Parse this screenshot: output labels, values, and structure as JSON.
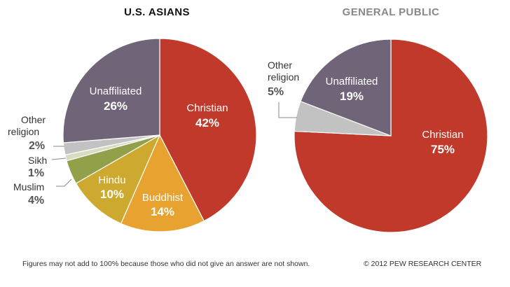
{
  "colors": {
    "christian": "#c0392b",
    "buddhist": "#e8a22f",
    "hindu": "#cda930",
    "muslim": "#93a04a",
    "sikh": "#d8dcc0",
    "other": "#c2c2c2",
    "unaffiliated": "#6f6478",
    "title": "#111111",
    "title_muted": "#888888"
  },
  "chart_data": [
    {
      "type": "pie",
      "title": "U.S. ASIANS",
      "slices": [
        {
          "label": "Christian",
          "value": 42,
          "value_label": "42%",
          "color_key": "christian"
        },
        {
          "label": "Buddhist",
          "value": 14,
          "value_label": "14%",
          "color_key": "buddhist"
        },
        {
          "label": "Hindu",
          "value": 10,
          "value_label": "10%",
          "color_key": "hindu"
        },
        {
          "label": "Muslim",
          "value": 4,
          "value_label": "4%",
          "color_key": "muslim"
        },
        {
          "label": "Sikh",
          "value": 1,
          "value_label": "1%",
          "color_key": "sikh"
        },
        {
          "label": "Other religion",
          "label_lines": [
            "Other",
            "religion"
          ],
          "value": 2,
          "value_label": "2%",
          "color_key": "other"
        },
        {
          "label": "Unaffiliated",
          "value": 26,
          "value_label": "26%",
          "color_key": "unaffiliated"
        }
      ]
    },
    {
      "type": "pie",
      "title": "GENERAL PUBLIC",
      "slices": [
        {
          "label": "Christian",
          "value": 75,
          "value_label": "75%",
          "color_key": "christian"
        },
        {
          "label": "Other religion",
          "label_lines": [
            "Other",
            "religion"
          ],
          "value": 5,
          "value_label": "5%",
          "color_key": "other"
        },
        {
          "label": "Unaffiliated",
          "value": 19,
          "value_label": "19%",
          "color_key": "unaffiliated"
        }
      ]
    }
  ],
  "footer": {
    "note": "Figures may not add to 100% because those who did not give an answer are not shown.",
    "credit": "© 2012 PEW RESEARCH CENTER"
  }
}
